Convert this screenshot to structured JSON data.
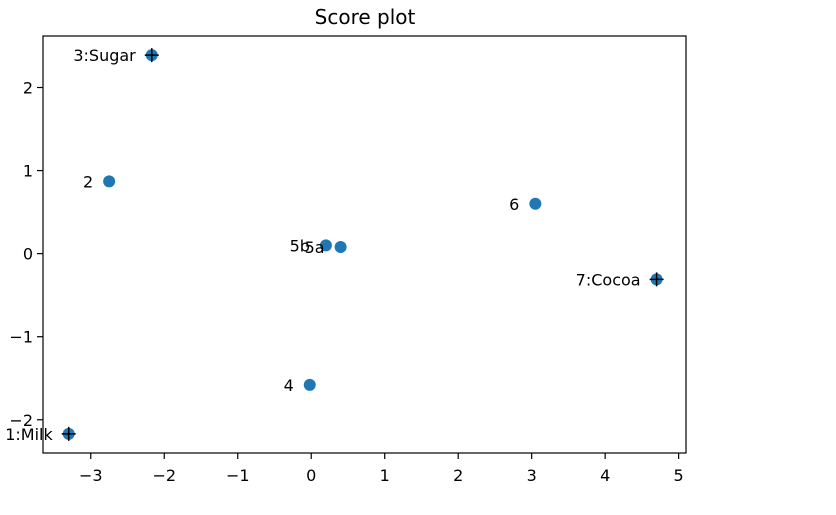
{
  "colors": {
    "point": "#1f77b4",
    "marker": "#000000",
    "axes": "#000000",
    "background": "#ffffff"
  },
  "chart_data": {
    "type": "scatter",
    "title": "Score plot",
    "xlabel": "",
    "ylabel": "",
    "xlim": [
      -3.65,
      5.1
    ],
    "ylim": [
      -2.4,
      2.62
    ],
    "xticks": [
      -3,
      -2,
      -1,
      0,
      1,
      2,
      3,
      4,
      5
    ],
    "yticks": [
      -2,
      -1,
      0,
      1,
      2
    ],
    "grid": false,
    "points": [
      {
        "label": "1:Milk",
        "x": -3.3,
        "y": -2.17,
        "cross": true
      },
      {
        "label": "2",
        "x": -2.75,
        "y": 0.87,
        "cross": false
      },
      {
        "label": "3:Sugar",
        "x": -2.17,
        "y": 2.39,
        "cross": true
      },
      {
        "label": "4",
        "x": -0.02,
        "y": -1.58,
        "cross": false
      },
      {
        "label": "5b",
        "x": 0.2,
        "y": 0.1,
        "cross": false
      },
      {
        "label": "5a",
        "x": 0.4,
        "y": 0.08,
        "cross": false
      },
      {
        "label": "6",
        "x": 3.05,
        "y": 0.6,
        "cross": false
      },
      {
        "label": "7:Cocoa",
        "x": 4.7,
        "y": -0.31,
        "cross": true
      }
    ]
  }
}
